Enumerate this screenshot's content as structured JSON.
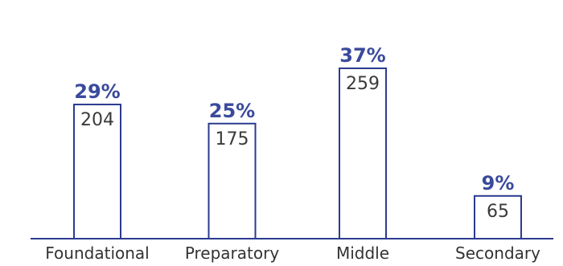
{
  "colors": {
    "bar_stroke": "#2b3b8f",
    "bar_fill": "#ffffff",
    "percent_text": "#3a4a9c",
    "value_text": "#3a3a3a",
    "axis": "#2b3b8f",
    "category_text": "#333333"
  },
  "chart_data": {
    "type": "bar",
    "categories": [
      "Foundational",
      "Preparatory",
      "Middle",
      "Secondary"
    ],
    "values": [
      204,
      175,
      259,
      65
    ],
    "percent_labels": [
      "29%",
      "25%",
      "37%",
      "9%"
    ],
    "value_labels": [
      "204",
      "175",
      "259",
      "65"
    ],
    "title": "",
    "xlabel": "",
    "ylabel": "",
    "ylim": [
      0,
      300
    ],
    "grid": false,
    "legend": "none"
  }
}
